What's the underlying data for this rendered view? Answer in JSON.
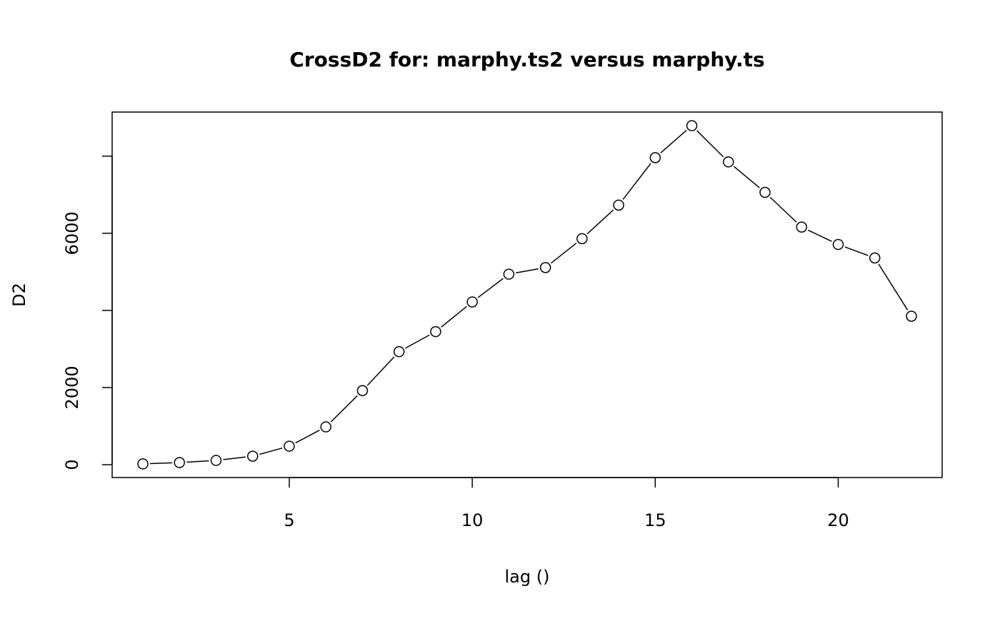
{
  "chart_data": {
    "type": "line",
    "title": "CrossD2 for: marphy.ts2 versus marphy.ts",
    "xlabel": "lag ()",
    "ylabel": "D2",
    "x": [
      1,
      2,
      3,
      4,
      5,
      6,
      7,
      8,
      9,
      10,
      11,
      12,
      13,
      14,
      15,
      16,
      17,
      18,
      19,
      20,
      21,
      22
    ],
    "series": [
      {
        "name": "D2",
        "values": [
          20,
          55,
          110,
          220,
          480,
          980,
          1920,
          2930,
          3450,
          4220,
          4940,
          5110,
          5860,
          6730,
          7960,
          8790,
          7850,
          7060,
          6160,
          5710,
          5360,
          3850
        ]
      }
    ],
    "xlim": [
      0.16,
      22.84
    ],
    "ylim": [
      -333,
      9142
    ],
    "xticks": [
      5,
      10,
      15,
      20
    ],
    "xtick_labels": [
      "5",
      "10",
      "15",
      "20"
    ],
    "yticks": [
      0,
      2000,
      4000,
      6000,
      8000
    ],
    "ytick_labels": [
      "0",
      "2000",
      "",
      "6000",
      ""
    ],
    "markers": "open-circle",
    "grid": false
  }
}
